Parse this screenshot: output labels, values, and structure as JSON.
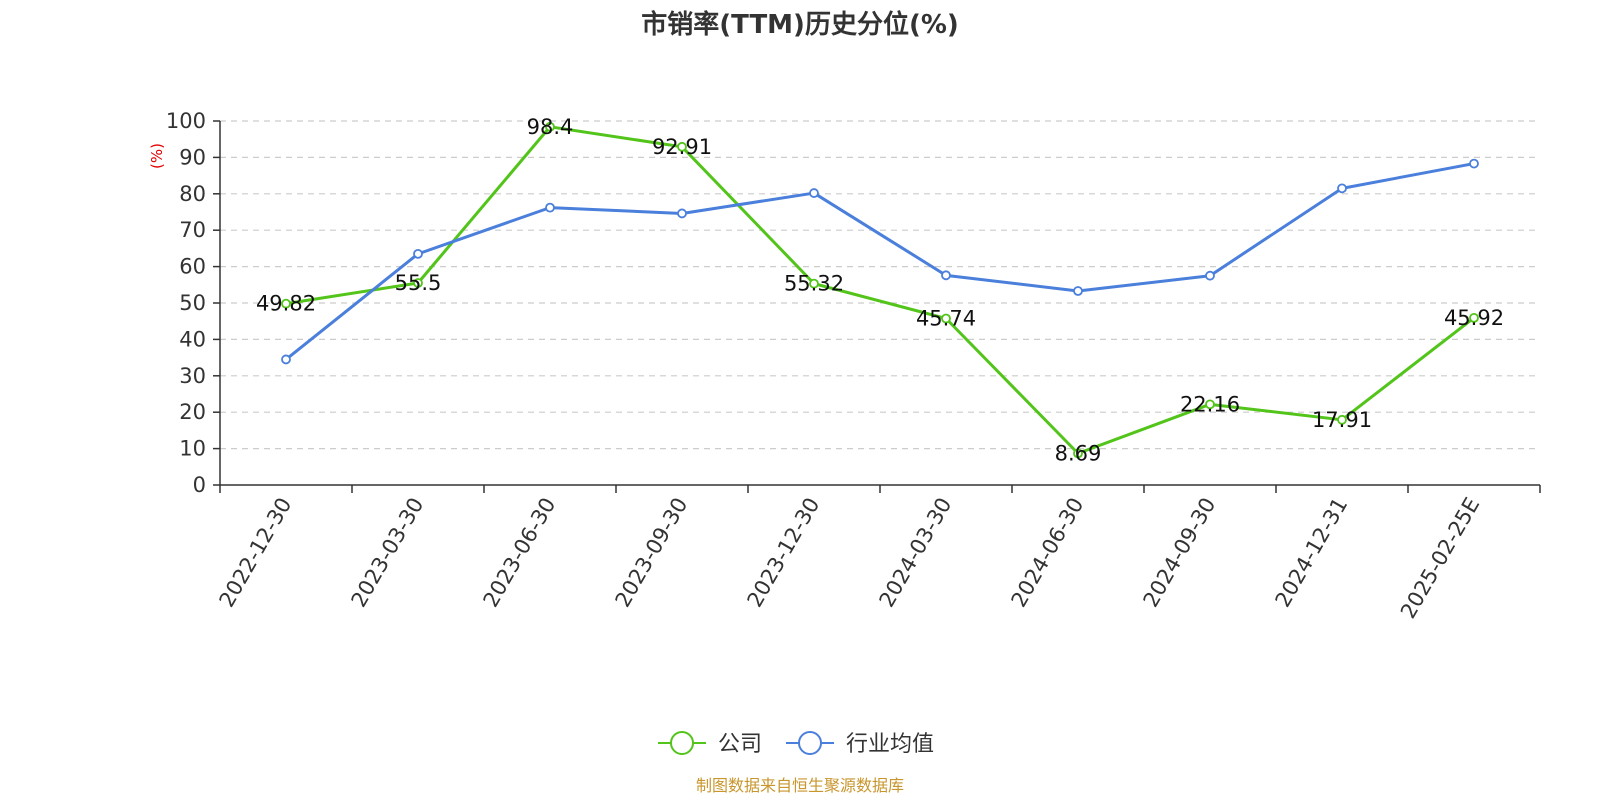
{
  "chart_data": {
    "type": "line",
    "title": "市销率(TTM)历史分位(%)",
    "ylabel": "(%)",
    "ylim": [
      0,
      100
    ],
    "yticks": [
      0,
      10,
      20,
      30,
      40,
      50,
      60,
      70,
      80,
      90,
      100
    ],
    "grid": "horizontal-dashed",
    "categories": [
      "2022-12-30",
      "2023-03-30",
      "2023-06-30",
      "2023-09-30",
      "2023-12-30",
      "2024-03-30",
      "2024-06-30",
      "2024-09-30",
      "2024-12-31",
      "2025-02-25E"
    ],
    "series": [
      {
        "name": "公司",
        "color": "#52c41a",
        "values": [
          49.82,
          55.5,
          98.4,
          92.91,
          55.32,
          45.74,
          8.69,
          22.16,
          17.91,
          45.92
        ],
        "labels": [
          "49.82",
          "55.5",
          "98.4",
          "92.91",
          "55.32",
          "45.74",
          "8.69",
          "22.16",
          "17.91",
          "45.92"
        ]
      },
      {
        "name": "行业均值",
        "color": "#4a7fdc",
        "values": [
          34.5,
          63.5,
          76.2,
          74.6,
          80.2,
          57.6,
          53.3,
          57.5,
          81.5,
          88.3
        ]
      }
    ],
    "legend_position": "bottom-center"
  },
  "source_text": "制图数据来自恒生聚源数据库",
  "colors": {
    "axis": "#333333",
    "grid": "#cccccc",
    "ylabel": "#e00000",
    "source": "#c8962d"
  }
}
